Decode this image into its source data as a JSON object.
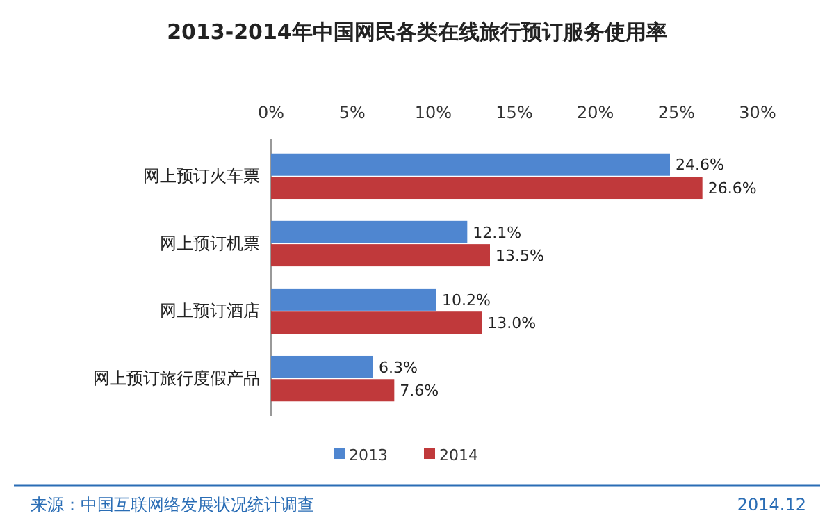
{
  "chart_data": {
    "type": "bar",
    "orientation": "horizontal",
    "title": "2013-2014年中国网民各类在线旅行预订服务使用率",
    "categories": [
      "网上预订火车票",
      "网上预订机票",
      "网上预订酒店",
      "网上预订旅行度假产品"
    ],
    "series": [
      {
        "name": "2013",
        "color": "#4f86d0",
        "values": [
          24.6,
          12.1,
          10.2,
          6.3
        ],
        "value_labels": [
          "24.6%",
          "12.1%",
          "10.2%",
          "6.3%"
        ]
      },
      {
        "name": "2014",
        "color": "#c0393b",
        "values": [
          26.6,
          13.5,
          13.0,
          7.6
        ],
        "value_labels": [
          "26.6%",
          "13.5%",
          "13.0%",
          "7.6%"
        ]
      }
    ],
    "xlim": [
      0,
      30
    ],
    "xticks": [
      {
        "value": 0,
        "label": "0%"
      },
      {
        "value": 5,
        "label": "5%"
      },
      {
        "value": 10,
        "label": "10%"
      },
      {
        "value": 15,
        "label": "15%"
      },
      {
        "value": 20,
        "label": "20%"
      },
      {
        "value": 25,
        "label": "25%"
      },
      {
        "value": 30,
        "label": "30%"
      }
    ],
    "legend": "bottom",
    "grid": false,
    "annotations": [
      "来源：中国互联网络发展状况统计调查",
      "2014.12"
    ]
  }
}
